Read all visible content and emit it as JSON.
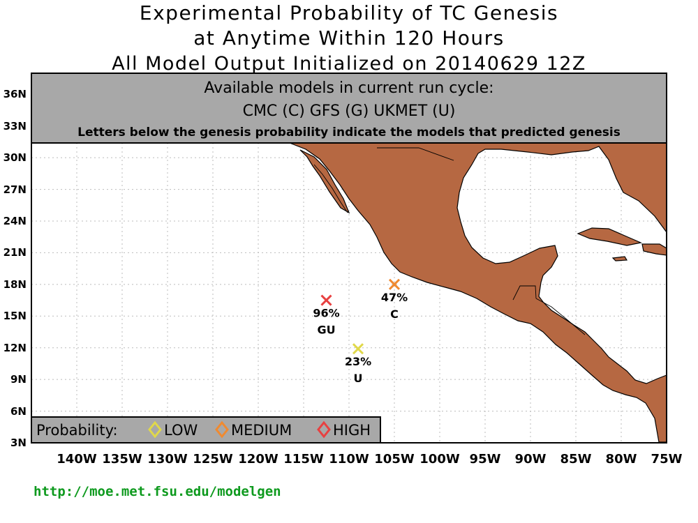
{
  "title": {
    "line1": "Experimental Probability of TC Genesis",
    "line2": "at Anytime Within 120 Hours",
    "line3": "All Model Output Initialized on 20140629 12Z"
  },
  "header_box": {
    "line1": "Available models in current run cycle:",
    "line2": "CMC (C) GFS (G)  UKMET (U)",
    "line3": "Letters below the genesis probability indicate the models that predicted genesis"
  },
  "legend": {
    "label": "Probability:",
    "items": [
      {
        "label": "LOW",
        "color": "#e0d84a"
      },
      {
        "label": "MEDIUM",
        "color": "#f08a30"
      },
      {
        "label": "HIGH",
        "color": "#e84040"
      }
    ]
  },
  "y_axis_labels": [
    "36N",
    "33N",
    "30N",
    "27N",
    "24N",
    "21N",
    "18N",
    "15N",
    "12N",
    "9N",
    "6N",
    "3N"
  ],
  "x_axis_labels": [
    "140W",
    "135W",
    "130W",
    "125W",
    "120W",
    "115W",
    "110W",
    "105W",
    "100W",
    "95W",
    "90W",
    "85W",
    "80W",
    "75W"
  ],
  "markers": [
    {
      "probability": "96%",
      "models": "GU",
      "lon": -112.5,
      "lat": 16.5,
      "level": "HIGH",
      "color": "#e84040"
    },
    {
      "probability": "47%",
      "models": "C",
      "lon": -105.0,
      "lat": 18.0,
      "level": "MEDIUM",
      "color": "#f08a30"
    },
    {
      "probability": "23%",
      "models": "U",
      "lon": -109.0,
      "lat": 11.9,
      "level": "LOW",
      "color": "#e0d84a"
    }
  ],
  "colors": {
    "land": "#b66842",
    "header_fill": "#a8a8a8",
    "url": "#0e9a1e"
  },
  "url": "http://moe.met.fsu.edu/modelgen"
}
